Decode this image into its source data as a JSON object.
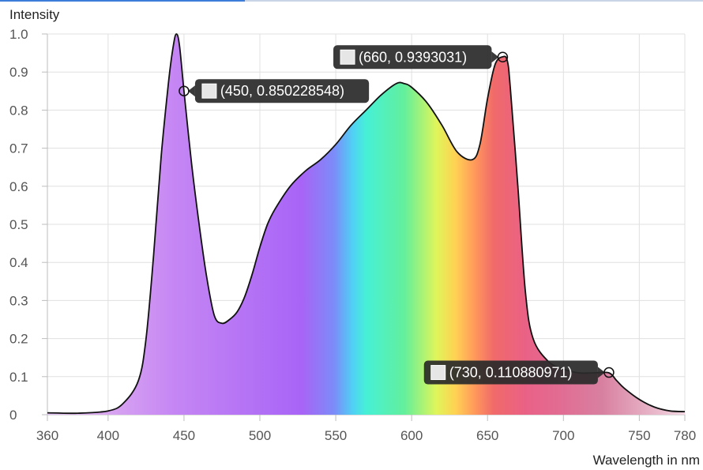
{
  "chart_data": {
    "type": "area",
    "xlabel": "Wavelength in nm",
    "ylabel": "Intensity",
    "xlim": [
      360,
      780
    ],
    "ylim": [
      0,
      1.0
    ],
    "grid": true,
    "x_ticks": [
      "360",
      "400",
      "450",
      "500",
      "550",
      "600",
      "650",
      "700",
      "750",
      "780"
    ],
    "y_ticks": [
      "0",
      "0.1",
      "0.2",
      "0.3",
      "0.4",
      "0.5",
      "0.6",
      "0.7",
      "0.8",
      "0.9",
      "1.0"
    ],
    "series": [
      {
        "x": [
          360,
          380,
          400,
          410,
          420,
          425,
          430,
          435,
          440,
          443,
          445,
          447,
          450,
          455,
          460,
          465,
          470,
          475,
          480,
          485,
          490,
          495,
          500,
          505,
          510,
          520,
          530,
          540,
          550,
          560,
          570,
          580,
          590,
          595,
          600,
          610,
          620,
          630,
          640,
          645,
          650,
          655,
          660,
          663,
          665,
          670,
          675,
          680,
          690,
          700,
          710,
          720,
          730,
          735,
          740,
          750,
          760,
          770,
          780
        ],
        "y": [
          0.005,
          0.004,
          0.01,
          0.03,
          0.09,
          0.2,
          0.42,
          0.68,
          0.88,
          0.97,
          1.0,
          0.97,
          0.85,
          0.66,
          0.5,
          0.36,
          0.26,
          0.24,
          0.25,
          0.27,
          0.31,
          0.37,
          0.44,
          0.5,
          0.54,
          0.6,
          0.64,
          0.67,
          0.71,
          0.76,
          0.8,
          0.84,
          0.87,
          0.87,
          0.86,
          0.82,
          0.76,
          0.69,
          0.67,
          0.71,
          0.83,
          0.92,
          0.94,
          0.93,
          0.86,
          0.6,
          0.32,
          0.2,
          0.14,
          0.12,
          0.11,
          0.11,
          0.11,
          0.09,
          0.07,
          0.04,
          0.02,
          0.01,
          0.008
        ]
      }
    ],
    "tooltips": [
      {
        "x": 450,
        "y": 0.850228548,
        "label": "(450, 0.850228548)"
      },
      {
        "x": 660,
        "y": 0.9393031,
        "label": "(660, 0.9393031)"
      },
      {
        "x": 730,
        "y": 0.110880971,
        "label": "(730, 0.110880971)"
      }
    ]
  }
}
